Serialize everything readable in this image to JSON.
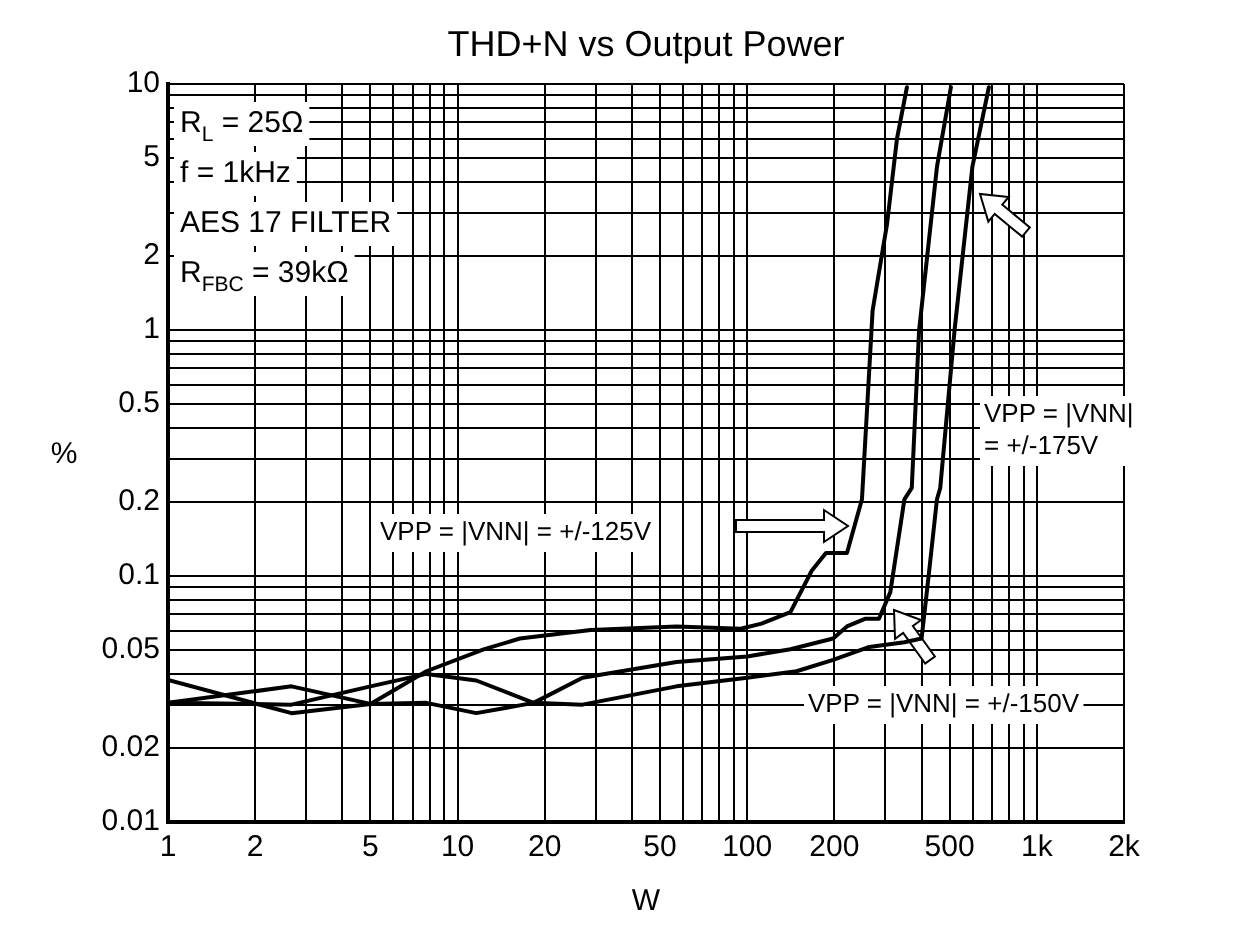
{
  "chart_data": {
    "type": "line",
    "title": "THD+N vs Output Power",
    "xlabel": "W",
    "ylabel": "%",
    "log": "xy",
    "grid": true,
    "legend": false,
    "marker": "none",
    "line_style": "solid",
    "xlim": [
      1,
      2000
    ],
    "ylim": [
      0.01,
      10
    ],
    "xticks": [
      1,
      2,
      {
        "value": 3,
        "label": null
      },
      {
        "value": 4,
        "label": null
      },
      5,
      {
        "value": 6,
        "label": null
      },
      {
        "value": 7,
        "label": null
      },
      {
        "value": 8,
        "label": null
      },
      {
        "value": 9,
        "label": null
      },
      10,
      20,
      {
        "value": 30,
        "label": null
      },
      {
        "value": 40,
        "label": null
      },
      50,
      {
        "value": 60,
        "label": null
      },
      {
        "value": 70,
        "label": null
      },
      {
        "value": 80,
        "label": null
      },
      {
        "value": 90,
        "label": null
      },
      100,
      200,
      {
        "value": 300,
        "label": null
      },
      {
        "value": 400,
        "label": null
      },
      500,
      {
        "value": 600,
        "label": null
      },
      {
        "value": 700,
        "label": null
      },
      {
        "value": 800,
        "label": null
      },
      {
        "value": 900,
        "label": null
      },
      {
        "value": 1000,
        "label": "1k"
      },
      {
        "value": 2000,
        "label": "2k"
      }
    ],
    "yticks": [
      0.01,
      0.02,
      {
        "value": 0.03,
        "label": null
      },
      {
        "value": 0.04,
        "label": null
      },
      0.05,
      {
        "value": 0.06,
        "label": null
      },
      {
        "value": 0.07,
        "label": null
      },
      {
        "value": 0.08,
        "label": null
      },
      {
        "value": 0.09,
        "label": null
      },
      0.1,
      0.2,
      {
        "value": 0.3,
        "label": null
      },
      {
        "value": 0.4,
        "label": null
      },
      0.5,
      {
        "value": 0.6,
        "label": null
      },
      {
        "value": 0.7,
        "label": null
      },
      {
        "value": 0.8,
        "label": null
      },
      {
        "value": 0.9,
        "label": null
      },
      1,
      2,
      {
        "value": 3,
        "label": null
      },
      {
        "value": 4,
        "label": null
      },
      5,
      {
        "value": 6,
        "label": null
      },
      {
        "value": 7,
        "label": null
      },
      {
        "value": 8,
        "label": null
      },
      {
        "value": 9,
        "label": null
      },
      10
    ],
    "series": [
      {
        "color": "#000000",
        "x": [
          1,
          2.67,
          5,
          7.8,
          12.3,
          16.4,
          28.8,
          57,
          95,
          112,
          141,
          167,
          187,
          221,
          249,
          271,
          304,
          329,
          356
        ],
        "values": [
          0.0378,
          0.0277,
          0.0302,
          0.041,
          0.0503,
          0.0557,
          0.0603,
          0.0624,
          0.061,
          0.064,
          0.0713,
          0.105,
          0.124,
          0.124,
          0.205,
          1.2,
          2.7,
          6.0,
          9.7
        ]
      },
      {
        "color": "#000000",
        "x": [
          1,
          2.67,
          5,
          7.8,
          11.6,
          18.3,
          27,
          57,
          100,
          141,
          198,
          221,
          255,
          285,
          312,
          349,
          370,
          392,
          452,
          505
        ],
        "values": [
          0.0305,
          0.0356,
          0.0302,
          0.0305,
          0.0277,
          0.0305,
          0.0386,
          0.0447,
          0.0471,
          0.0504,
          0.0557,
          0.0624,
          0.067,
          0.067,
          0.086,
          0.205,
          0.228,
          0.99,
          4.6,
          9.7
        ]
      },
      {
        "color": "#000000",
        "x": [
          1,
          2.67,
          5,
          7.8,
          11.6,
          18.3,
          27,
          57,
          100,
          148,
          198,
          264,
          349,
          400,
          425,
          452,
          464,
          520,
          599,
          683
        ],
        "values": [
          0.0305,
          0.03,
          0.0356,
          0.04,
          0.0376,
          0.0305,
          0.03,
          0.0356,
          0.0386,
          0.041,
          0.0456,
          0.0515,
          0.0538,
          0.0557,
          0.105,
          0.205,
          0.228,
          1.0,
          4.6,
          9.7
        ]
      }
    ],
    "annotations": [
      "R$_{L}$ = 25Ω",
      "f = 1kHz",
      "AES 17 FILTER",
      "R$_{FBC}$ = 39kΩ",
      "VPP = |VNN| = +/-125V",
      "VPP = |VNN| = +/-150V",
      "VPP = |VNN| = +/-175V"
    ]
  }
}
